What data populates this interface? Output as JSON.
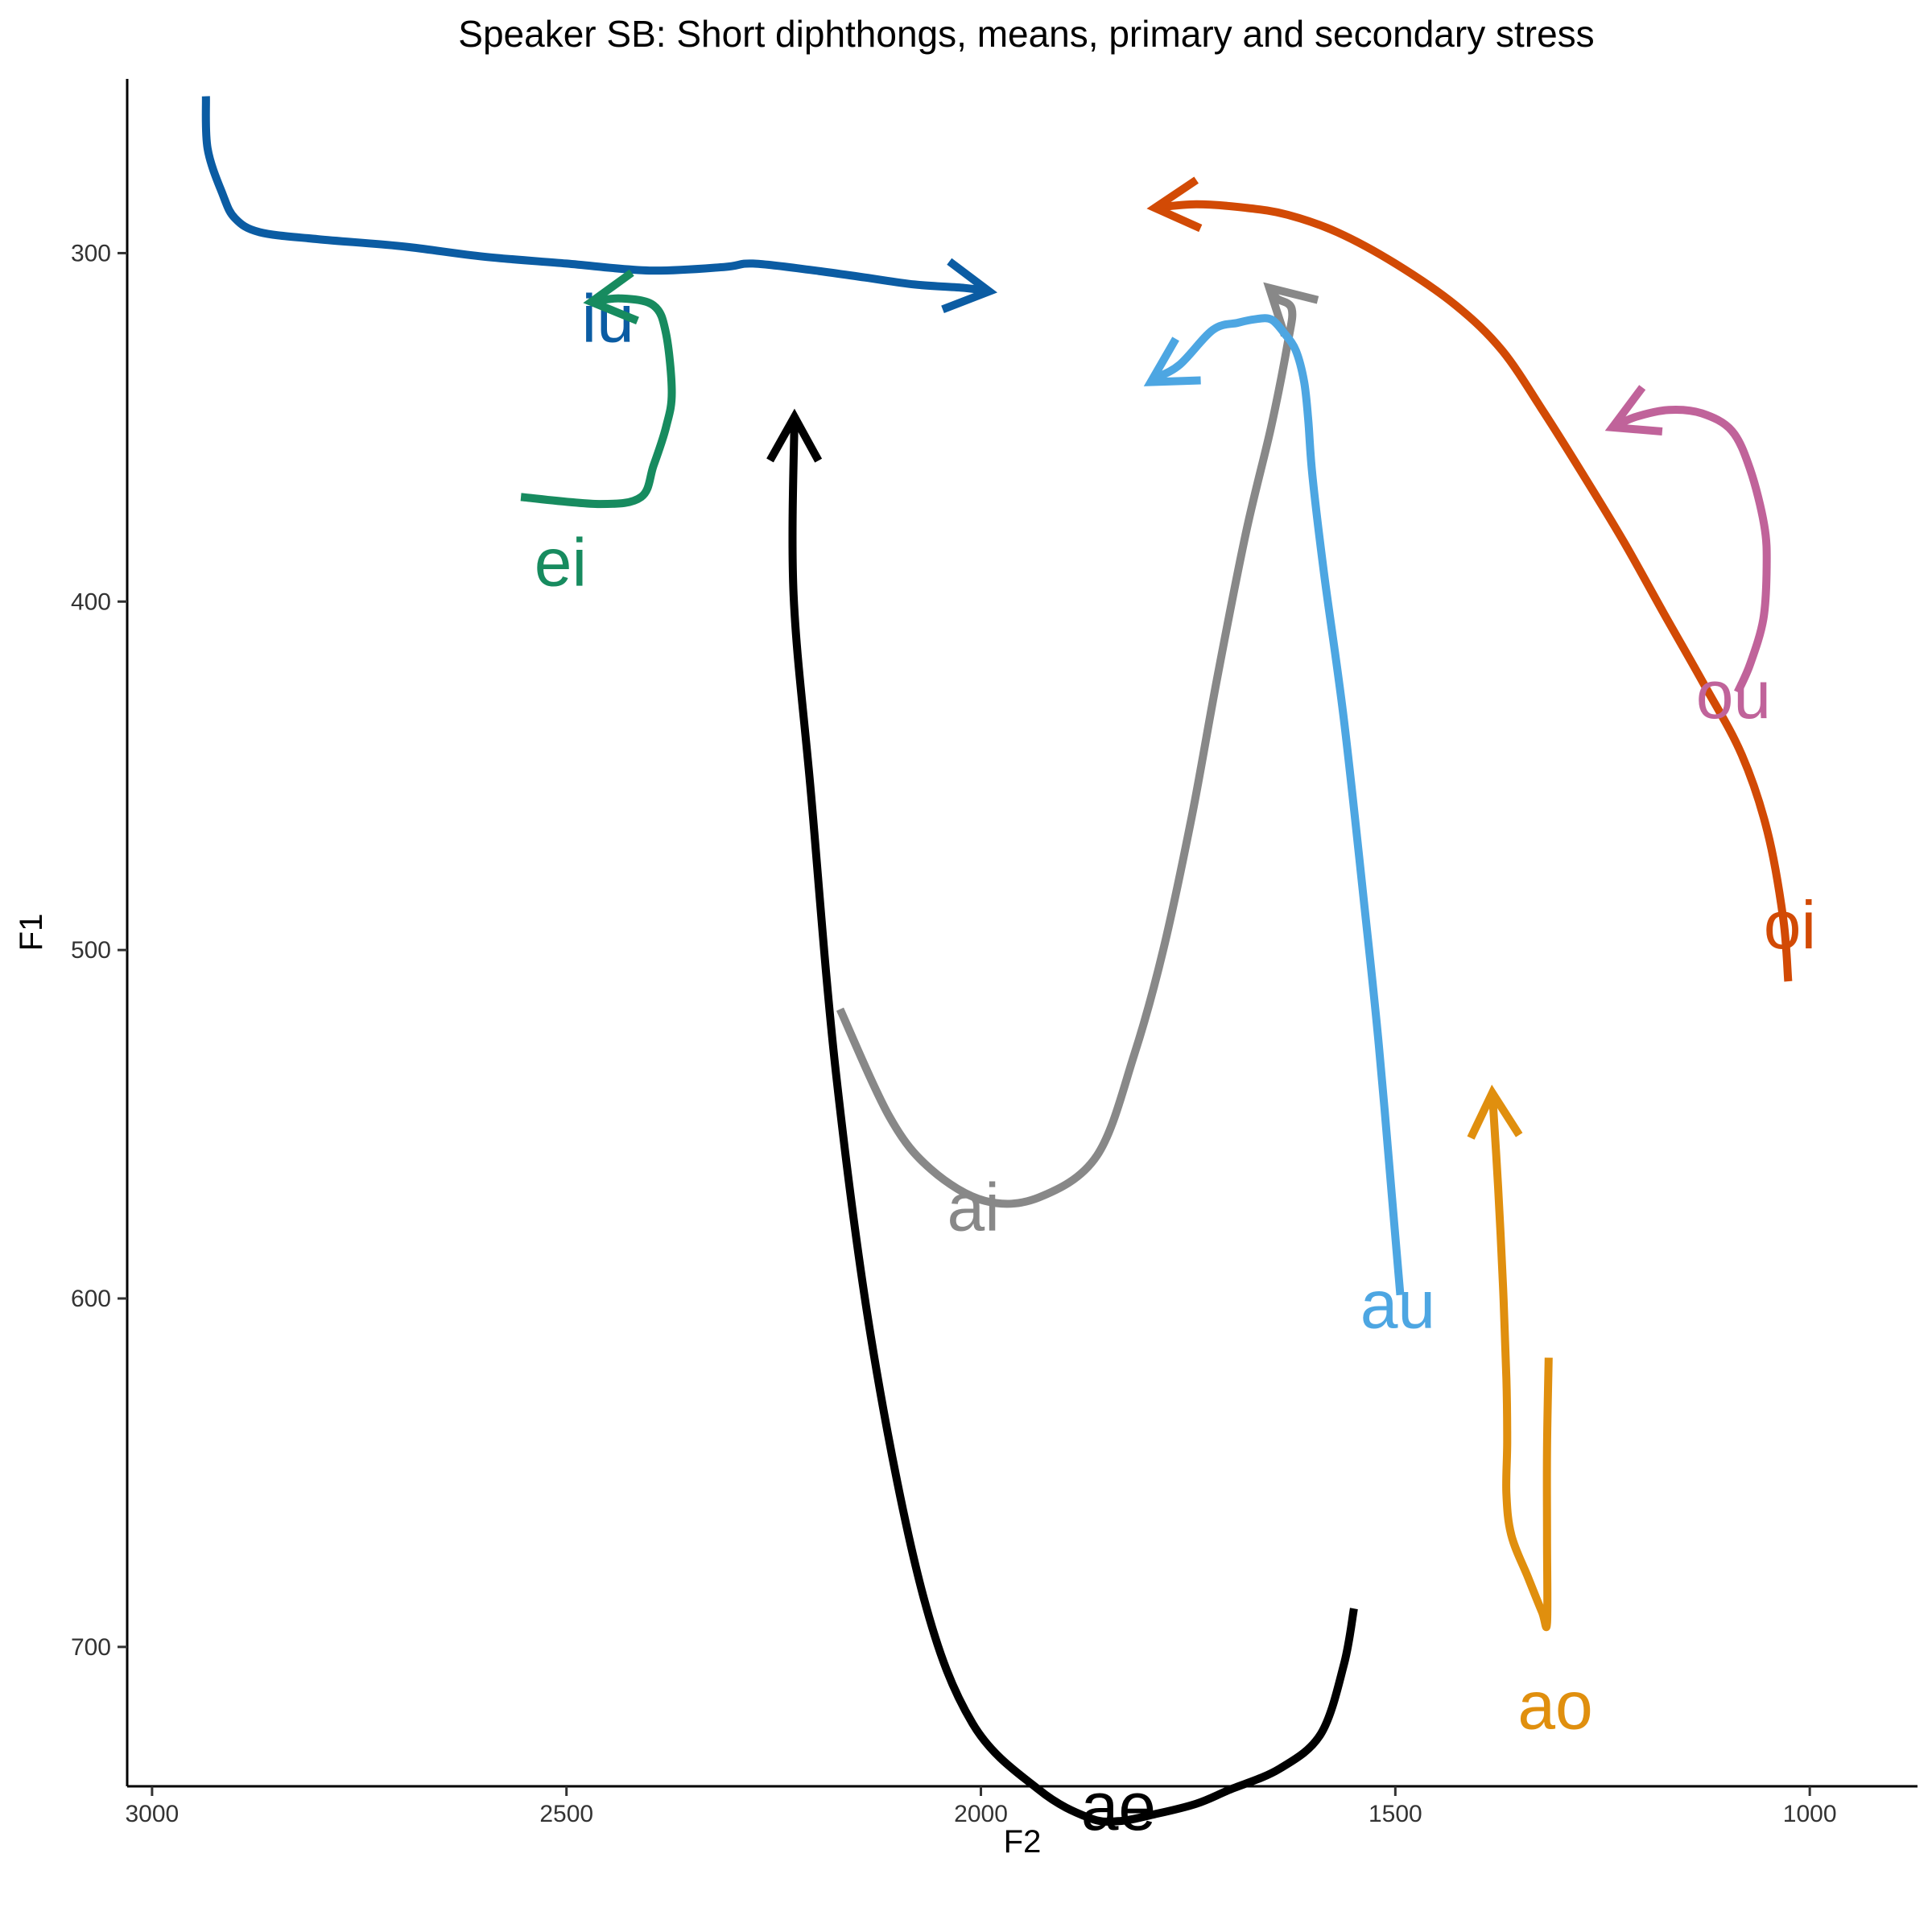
{
  "chart_data": {
    "type": "line",
    "title": "Speaker SB: Short diphthongs, means, primary and secondary stress",
    "xlabel": "F2",
    "ylabel": "F1",
    "xlim": [
      3030,
      870
    ],
    "ylim": [
      740,
      250
    ],
    "x_reversed": true,
    "y_reversed": true,
    "x_ticks": [
      3000,
      2500,
      2000,
      1500,
      1000
    ],
    "y_ticks": [
      300,
      400,
      500,
      600,
      700
    ],
    "grid": false,
    "legend": "none",
    "series": [
      {
        "name": "iu",
        "color": "#0B5CA3",
        "label_pos": [
          2450,
          319
        ],
        "points": [
          [
            2935,
            255
          ],
          [
            2933,
            270
          ],
          [
            2915,
            283
          ],
          [
            2900,
            290
          ],
          [
            2870,
            294
          ],
          [
            2800,
            296
          ],
          [
            2700,
            298
          ],
          [
            2600,
            301
          ],
          [
            2500,
            303
          ],
          [
            2400,
            305
          ],
          [
            2310,
            304
          ],
          [
            2275,
            303
          ],
          [
            2200,
            305
          ],
          [
            2140,
            307
          ],
          [
            2080,
            309
          ],
          [
            2020,
            310
          ],
          [
            1990,
            311
          ]
        ]
      },
      {
        "name": "oi",
        "color": "#D24A05",
        "label_pos": [
          1024,
          493
        ],
        "points": [
          [
            1026,
            509
          ],
          [
            1032,
            491
          ],
          [
            1051,
            466
          ],
          [
            1082,
            444
          ],
          [
            1127,
            424
          ],
          [
            1177,
            403
          ],
          [
            1224,
            383
          ],
          [
            1275,
            363
          ],
          [
            1320,
            346
          ],
          [
            1371,
            328
          ],
          [
            1427,
            315
          ],
          [
            1500,
            303
          ],
          [
            1570,
            294
          ],
          [
            1630,
            289
          ],
          [
            1680,
            287
          ],
          [
            1740,
            286
          ],
          [
            1790,
            287
          ]
        ]
      },
      {
        "name": "ei",
        "color": "#178B5F",
        "label_pos": [
          2507,
          389
        ],
        "points": [
          [
            2555,
            370
          ],
          [
            2460,
            372
          ],
          [
            2410,
            370
          ],
          [
            2395,
            361
          ],
          [
            2380,
            350
          ],
          [
            2373,
            340
          ],
          [
            2380,
            323
          ],
          [
            2395,
            315
          ],
          [
            2435,
            313
          ],
          [
            2470,
            314
          ]
        ]
      },
      {
        "name": "ai",
        "color": "#888888",
        "label_pos": [
          2009,
          574
        ],
        "points": [
          [
            2170,
            517
          ],
          [
            2110,
            548
          ],
          [
            2060,
            563
          ],
          [
            1995,
            572
          ],
          [
            1930,
            571
          ],
          [
            1860,
            559
          ],
          [
            1815,
            530
          ],
          [
            1780,
            500
          ],
          [
            1745,
            461
          ],
          [
            1715,
            422
          ],
          [
            1680,
            380
          ],
          [
            1650,
            350
          ],
          [
            1630,
            326
          ],
          [
            1625,
            316
          ],
          [
            1643,
            313
          ],
          [
            1652,
            310
          ]
        ]
      },
      {
        "name": "ae",
        "color": "#000000",
        "label_pos": [
          1834,
          746
        ],
        "points": [
          [
            1550,
            689
          ],
          [
            1562,
            705
          ],
          [
            1590,
            725
          ],
          [
            1640,
            735
          ],
          [
            1700,
            741
          ],
          [
            1740,
            745
          ],
          [
            1790,
            748
          ],
          [
            1834,
            750
          ],
          [
            1870,
            749
          ],
          [
            1930,
            741
          ],
          [
            2010,
            722
          ],
          [
            2070,
            685
          ],
          [
            2130,
            615
          ],
          [
            2175,
            535
          ],
          [
            2205,
            455
          ],
          [
            2226,
            398
          ],
          [
            2225,
            347
          ]
        ]
      },
      {
        "name": "au",
        "color": "#4DA6E2",
        "label_pos": [
          1497,
          602
        ],
        "points": [
          [
            1494,
            599
          ],
          [
            1504,
            571
          ],
          [
            1520,
            527
          ],
          [
            1537,
            488
          ],
          [
            1562,
            434
          ],
          [
            1586,
            392
          ],
          [
            1600,
            364
          ],
          [
            1605,
            348
          ],
          [
            1610,
            337
          ],
          [
            1620,
            328
          ],
          [
            1634,
            323
          ],
          [
            1650,
            319
          ],
          [
            1670,
            319
          ],
          [
            1690,
            320
          ],
          [
            1720,
            322
          ],
          [
            1760,
            332
          ],
          [
            1790,
            336
          ],
          [
            1795,
            337
          ]
        ]
      },
      {
        "name": "ou",
        "color": "#C0639A",
        "label_pos": [
          1092,
          427
        ],
        "points": [
          [
            1087,
            426
          ],
          [
            1072,
            418
          ],
          [
            1056,
            405
          ],
          [
            1052,
            390
          ],
          [
            1055,
            378
          ],
          [
            1072,
            362
          ],
          [
            1094,
            351
          ],
          [
            1130,
            346
          ],
          [
            1170,
            345
          ],
          [
            1210,
            347
          ],
          [
            1238,
            350
          ]
        ]
      },
      {
        "name": "ao",
        "color": "#E08F0E",
        "label_pos": [
          1307,
          717
        ],
        "points": [
          [
            1315,
            617
          ],
          [
            1317,
            643
          ],
          [
            1317,
            669
          ],
          [
            1317,
            693
          ],
          [
            1323,
            690
          ],
          [
            1340,
            680
          ],
          [
            1360,
            668
          ],
          [
            1366,
            656
          ],
          [
            1365,
            641
          ],
          [
            1366,
            623
          ],
          [
            1370,
            597
          ],
          [
            1376,
            568
          ],
          [
            1383,
            541
          ]
        ]
      }
    ]
  }
}
